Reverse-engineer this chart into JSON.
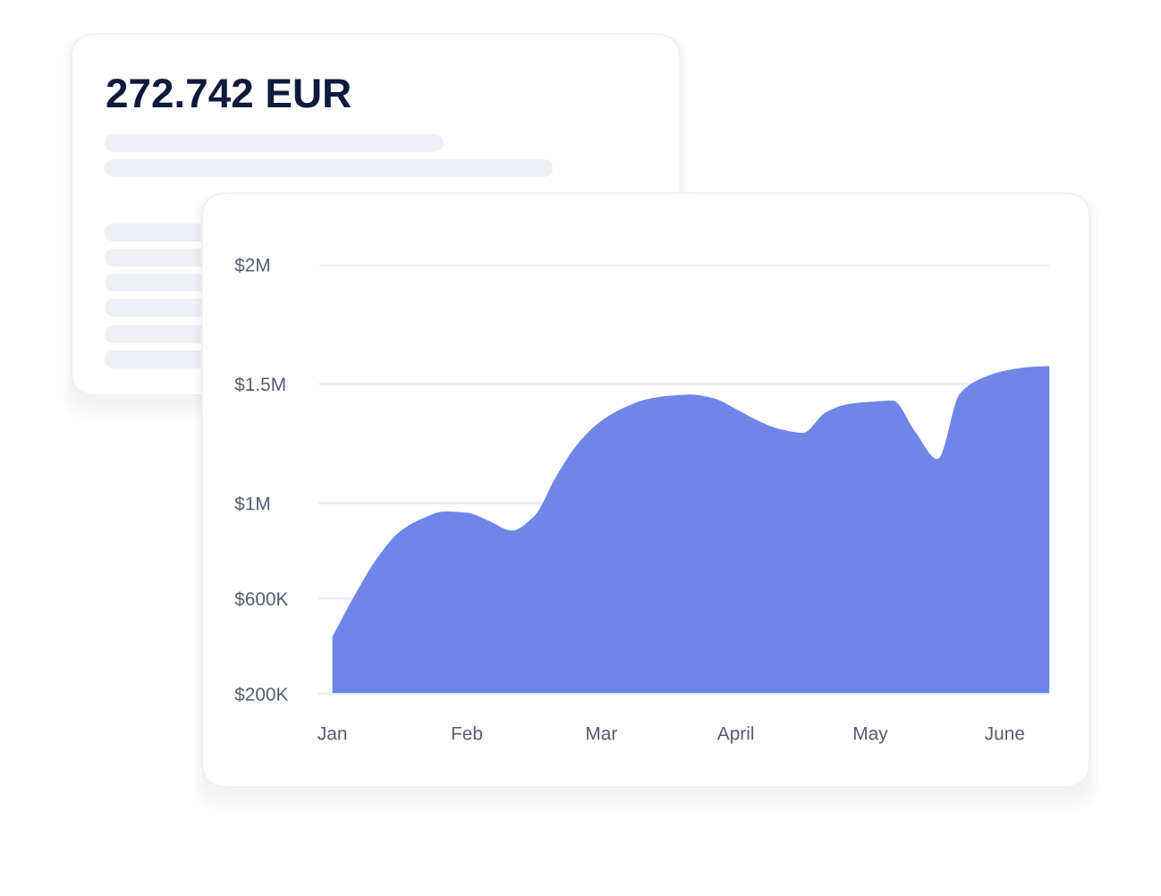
{
  "chart_data": [
    {
      "type": "other",
      "title": "272.742 EUR"
    },
    {
      "type": "area",
      "categories": [
        "Jan",
        null,
        null,
        null,
        null,
        null,
        "Feb",
        null,
        null,
        null,
        null,
        null,
        "Mar",
        null,
        null,
        null,
        null,
        null,
        "April",
        null,
        null,
        null,
        null,
        null,
        "May",
        null,
        null,
        null,
        null,
        null,
        "June",
        null,
        null
      ],
      "values": [
        440000,
        615000,
        770000,
        880000,
        935000,
        965000,
        960000,
        925000,
        885000,
        945000,
        1115000,
        1255000,
        1345000,
        1400000,
        1435000,
        1450000,
        1455000,
        1440000,
        1395000,
        1345000,
        1310000,
        1295000,
        1380000,
        1415000,
        1425000,
        1430000,
        1300000,
        1185000,
        1460000,
        1525000,
        1555000,
        1570000,
        1575000
      ],
      "color": "#6f86e7",
      "ylim": [
        200000,
        2000000
      ],
      "yticks": [
        {
          "value": 200000,
          "label": "$200K"
        },
        {
          "value": 600000,
          "label": "$600K"
        },
        {
          "value": 1000000,
          "label": "$1M"
        },
        {
          "value": 1500000,
          "label": "$1.5M"
        },
        {
          "value": 2000000,
          "label": "$2M"
        }
      ],
      "grid": "y"
    }
  ]
}
